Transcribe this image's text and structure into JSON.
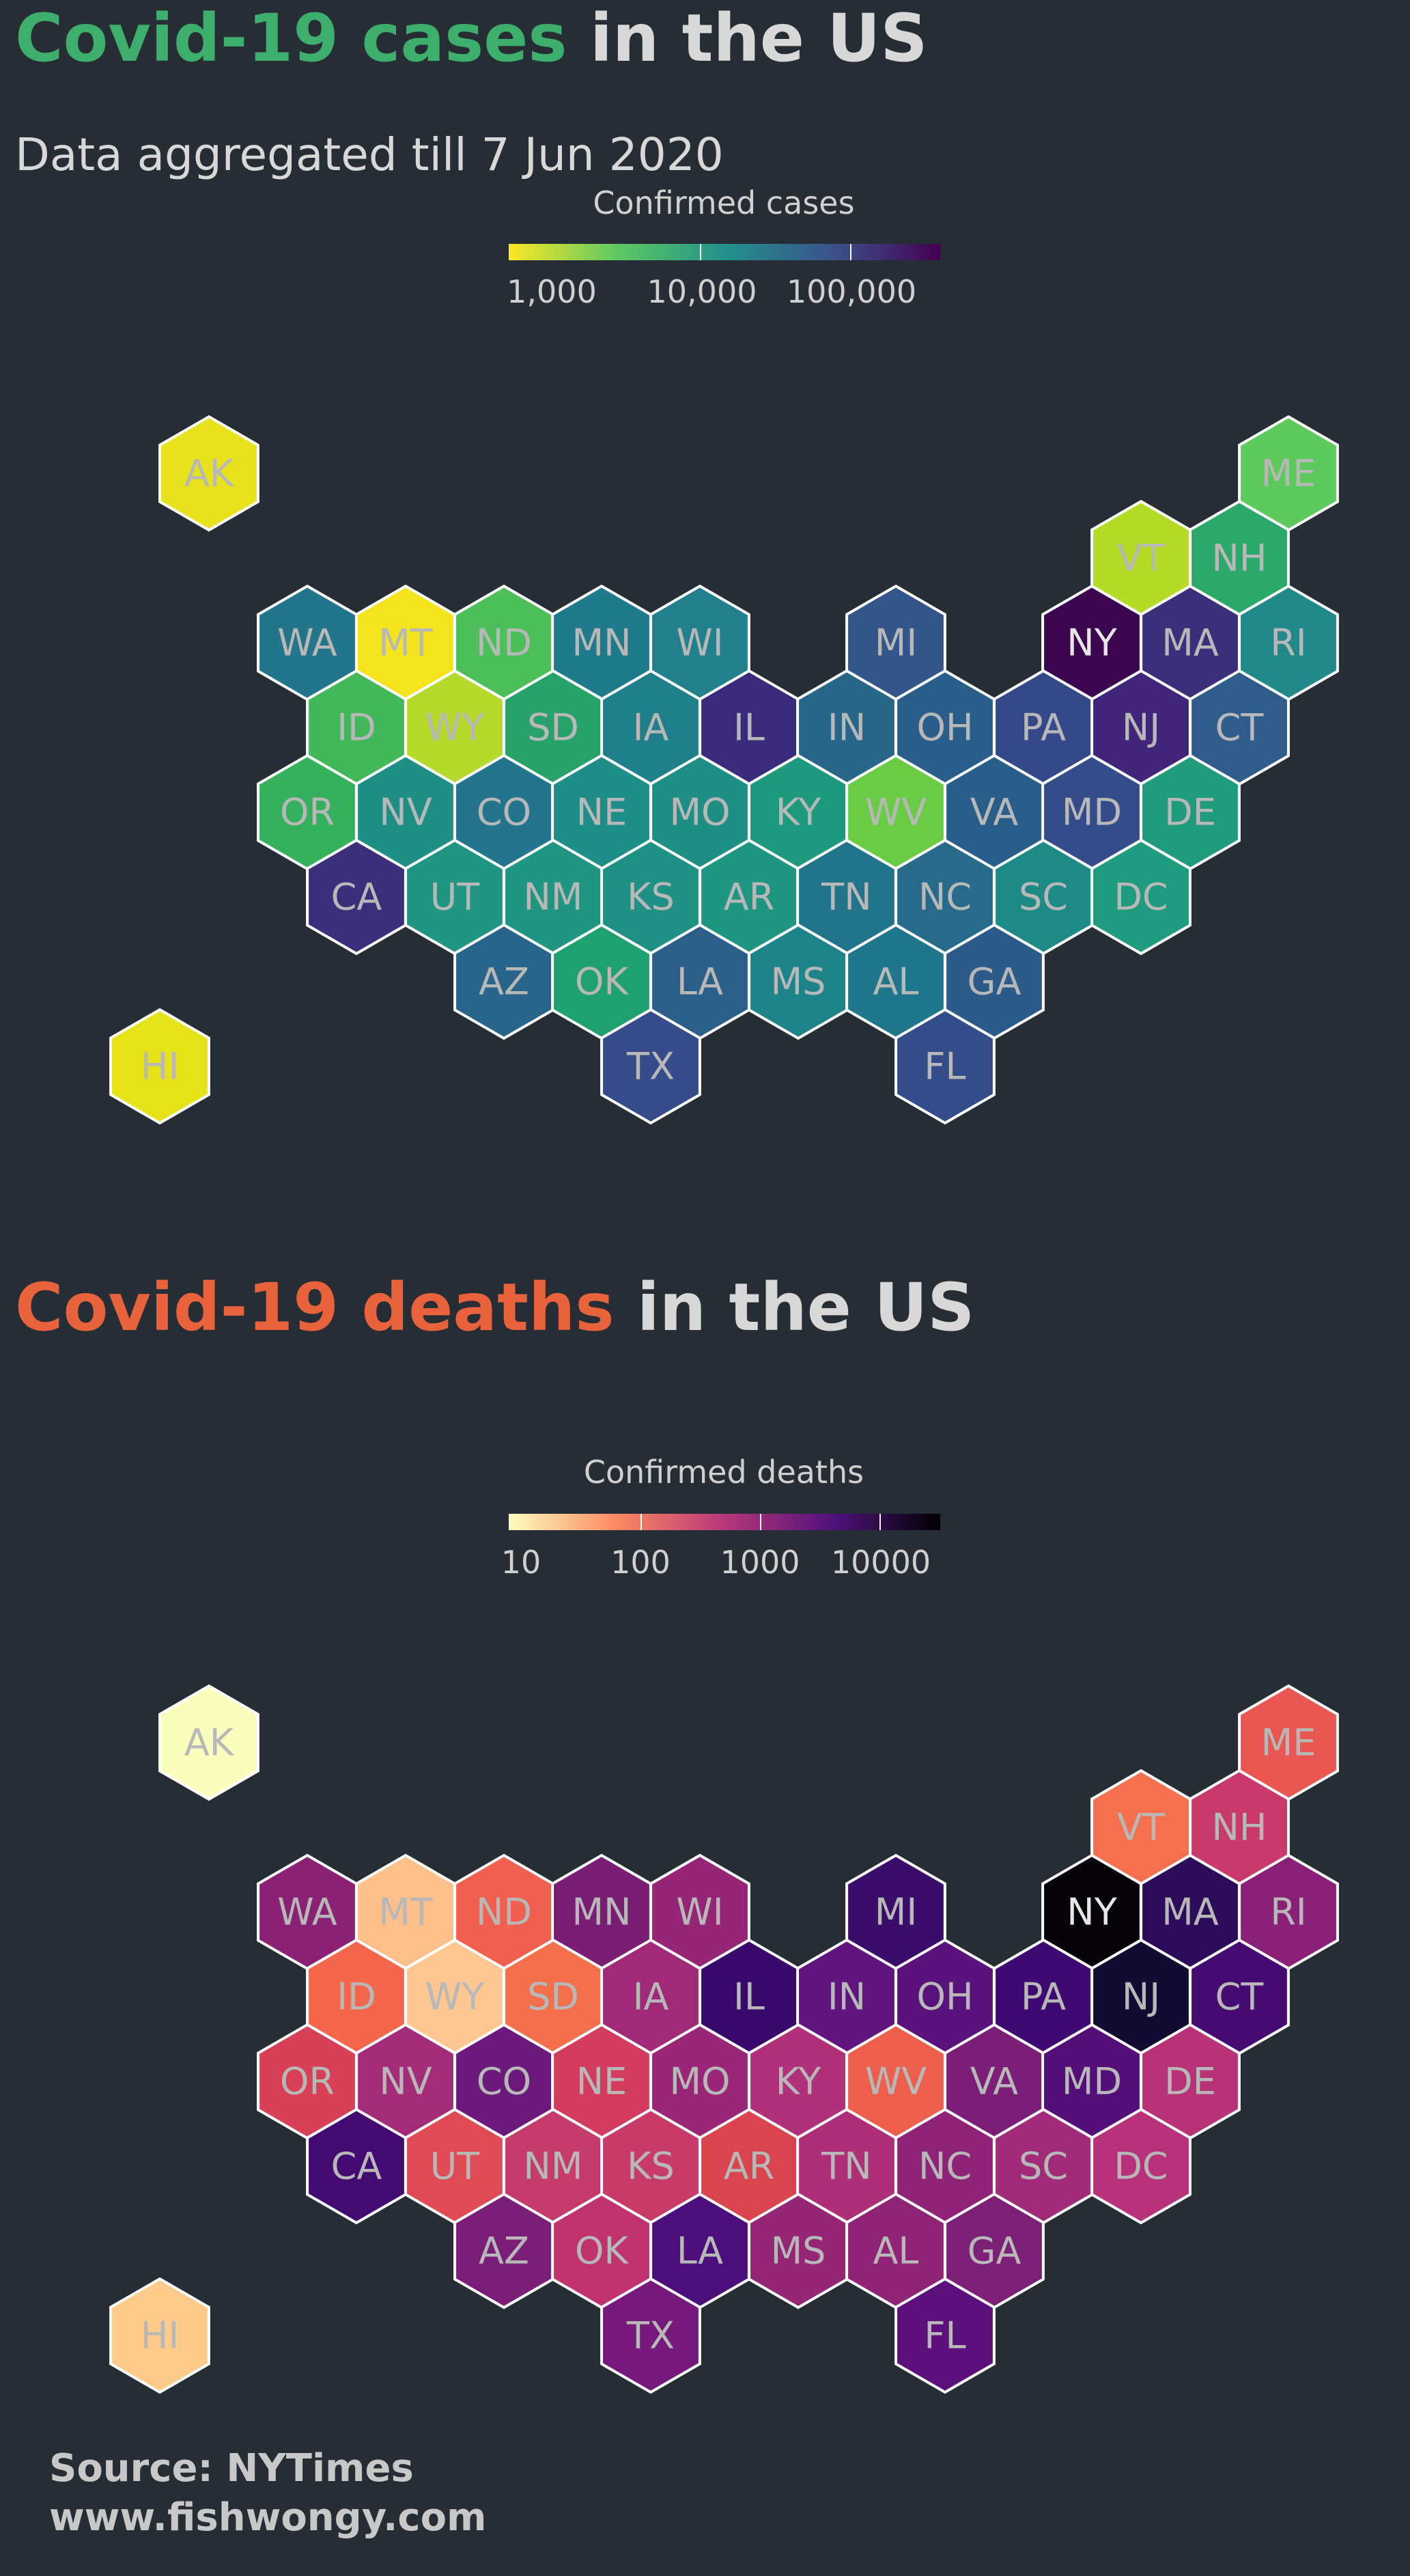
{
  "states": [
    "AK",
    "ME",
    "VT",
    "NH",
    "WA",
    "MT",
    "ND",
    "MN",
    "WI",
    "MI",
    "NY",
    "MA",
    "RI",
    "ID",
    "WY",
    "SD",
    "IA",
    "IL",
    "IN",
    "OH",
    "PA",
    "NJ",
    "CT",
    "OR",
    "NV",
    "CO",
    "NE",
    "MO",
    "KY",
    "WV",
    "VA",
    "MD",
    "DE",
    "CA",
    "UT",
    "NM",
    "KS",
    "AR",
    "TN",
    "NC",
    "SC",
    "DC",
    "AZ",
    "OK",
    "LA",
    "MS",
    "AL",
    "GA",
    "HI",
    "TX",
    "FL"
  ],
  "cases": {
    "title_highlight": "Covid-19 cases",
    "title_rest": " in the US",
    "highlight_color": "#3dae6b",
    "subtitle": "Data aggregated till 7 Jun 2020",
    "legend": {
      "title": "Confirmed cases",
      "colors": [
        "#fde725",
        "#5ec962",
        "#21918c",
        "#3b528b",
        "#440154"
      ],
      "ticks": [
        "1,000",
        "10,000",
        "100,000"
      ]
    }
  },
  "deaths": {
    "title_highlight": "Covid-19 deaths",
    "title_rest": " in the US",
    "highlight_color": "#e8633b",
    "legend": {
      "title": "Confirmed deaths",
      "colors": [
        "#fcfdbf",
        "#fc8961",
        "#b73779",
        "#51127c",
        "#000004"
      ],
      "ticks": [
        "10",
        "100",
        "1000",
        "10000"
      ]
    }
  },
  "map_data": {
    "cases_colors": {
      "AK": "#e7e21c",
      "ME": "#5ec95c",
      "VT": "#b4dc26",
      "NH": "#2aa96a",
      "WA": "#23758c",
      "MT": "#f3e41e",
      "ND": "#4cbf5a",
      "MN": "#1f7a8c",
      "WI": "#21808c",
      "MI": "#34558a",
      "NY": "#3c0550",
      "MA": "#3b2f7c",
      "RI": "#22898a",
      "ID": "#42b85a",
      "WY": "#b6da2c",
      "SD": "#26a26a",
      "IA": "#1f808c",
      "IL": "#3b2b7c",
      "IN": "#276589",
      "OH": "#2a5e8a",
      "PA": "#34488a",
      "NJ": "#40257a",
      "CT": "#2f5c8a",
      "OR": "#35b05c",
      "NV": "#1f8f86",
      "CO": "#23748c",
      "NE": "#1f8d88",
      "MO": "#1f8f86",
      "KY": "#1d9a7e",
      "WV": "#6acb45",
      "VA": "#2a5e8a",
      "MD": "#344c8a",
      "DE": "#1f9b7e",
      "CA": "#3b2f7c",
      "UT": "#1f9582",
      "NM": "#1f9582",
      "KS": "#1f9084",
      "AR": "#1f9682",
      "TN": "#22748a",
      "NC": "#276a8a",
      "SC": "#1e8a86",
      "DC": "#1f9b7f",
      "AZ": "#29658a",
      "OK": "#1fa070",
      "LA": "#2b5f8a",
      "MS": "#1f8489",
      "AL": "#20778b",
      "GA": "#2c5b8a",
      "HI": "#e5e218",
      "TX": "#364b89",
      "FL": "#344c8a"
    },
    "deaths_colors": {
      "AK": "#fbfdbd",
      "ME": "#ea5652",
      "VT": "#f4704f",
      "NH": "#c9396b",
      "WA": "#8a2175",
      "MT": "#fdc08a",
      "ND": "#f05f4f",
      "MN": "#7a1e74",
      "WI": "#962576",
      "MI": "#3a0d6a",
      "NY": "#070409",
      "MA": "#2c0b5a",
      "RI": "#891f77",
      "ID": "#f4674c",
      "WY": "#fec792",
      "SD": "#f4704c",
      "IA": "#a02a78",
      "IL": "#38096b",
      "IN": "#5f147e",
      "OH": "#5a137c",
      "PA": "#3e0a71",
      "NJ": "#130c32",
      "CT": "#450b72",
      "OR": "#d74057",
      "NV": "#a32b78",
      "CO": "#6b1a7c",
      "NE": "#d33c5e",
      "MO": "#9a2677",
      "KY": "#b0307a",
      "WV": "#ed5f4c",
      "VA": "#7a1e78",
      "MD": "#530e78",
      "DE": "#b73276",
      "CA": "#430b72",
      "UT": "#df4a55",
      "NM": "#c53b6c",
      "KS": "#c83a68",
      "AR": "#d9444f",
      "TN": "#ae2e78",
      "NC": "#8f2378",
      "SC": "#a22b79",
      "DC": "#b7327a",
      "AZ": "#7a1e78",
      "OK": "#c0336f",
      "LA": "#4c0e7a",
      "MS": "#952676",
      "AL": "#8f2376",
      "GA": "#7c1f77",
      "HI": "#feca8a",
      "TX": "#77197c",
      "FL": "#5b107c"
    },
    "dark_label_states": [
      "NY"
    ]
  },
  "source": {
    "line1": "Source: NYTimes",
    "line2": "www.fishwongy.com"
  }
}
